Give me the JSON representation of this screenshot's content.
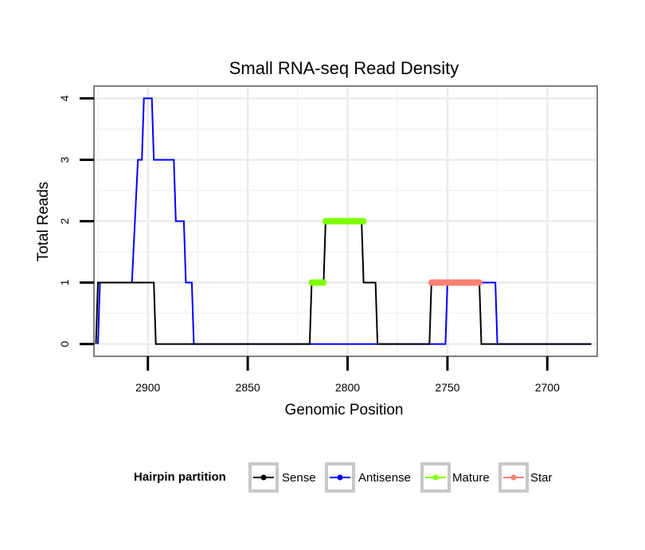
{
  "chart_data": {
    "type": "line",
    "title": "Small RNA-seq Read Density",
    "xlabel": "Genomic Position",
    "ylabel": "Total Reads",
    "xlim": [
      2927,
      2675
    ],
    "ylim": [
      -0.2,
      4.2
    ],
    "x_reversed": true,
    "x_ticks": [
      2900,
      2850,
      2800,
      2750,
      2700
    ],
    "y_ticks": [
      0,
      1,
      2,
      3,
      4
    ],
    "grid": true,
    "legend": {
      "title": "Hairpin partition",
      "position": "bottom",
      "entries": [
        {
          "label": "Sense",
          "color": "#000000"
        },
        {
          "label": "Antisense",
          "color": "#0000ff"
        },
        {
          "label": "Mature",
          "color": "#7fff00"
        },
        {
          "label": "Star",
          "color": "#fa8072"
        }
      ]
    },
    "series": [
      {
        "name": "Antisense",
        "color": "#0000ff",
        "points": [
          [
            2925,
            0
          ],
          [
            2924,
            1
          ],
          [
            2908,
            1
          ],
          [
            2905,
            3
          ],
          [
            2903,
            3
          ],
          [
            2902,
            4
          ],
          [
            2898,
            4
          ],
          [
            2897,
            3
          ],
          [
            2887,
            3
          ],
          [
            2886,
            2
          ],
          [
            2882,
            2
          ],
          [
            2881,
            1
          ],
          [
            2878,
            1
          ],
          [
            2877,
            0
          ],
          [
            2751,
            0
          ],
          [
            2750,
            1
          ],
          [
            2726,
            1
          ],
          [
            2725,
            0
          ],
          [
            2678,
            0
          ]
        ]
      },
      {
        "name": "Sense",
        "color": "#000000",
        "points": [
          [
            2926,
            0
          ],
          [
            2925,
            1
          ],
          [
            2897,
            1
          ],
          [
            2896,
            0
          ],
          [
            2819,
            0
          ],
          [
            2818,
            1
          ],
          [
            2812,
            1
          ],
          [
            2811,
            2
          ],
          [
            2793,
            2
          ],
          [
            2792,
            1
          ],
          [
            2786,
            1
          ],
          [
            2785,
            0
          ],
          [
            2759,
            0
          ],
          [
            2758,
            1
          ],
          [
            2734,
            1
          ],
          [
            2733,
            0
          ],
          [
            2678,
            0
          ]
        ]
      },
      {
        "name": "Mature",
        "color": "#7fff00",
        "segments": [
          [
            [
              2818,
              1
            ],
            [
              2812,
              1
            ]
          ],
          [
            [
              2811,
              2
            ],
            [
              2792,
              2
            ]
          ]
        ]
      },
      {
        "name": "Star",
        "color": "#fa8072",
        "segments": [
          [
            [
              2758,
              1
            ],
            [
              2734,
              1
            ]
          ]
        ]
      }
    ]
  }
}
